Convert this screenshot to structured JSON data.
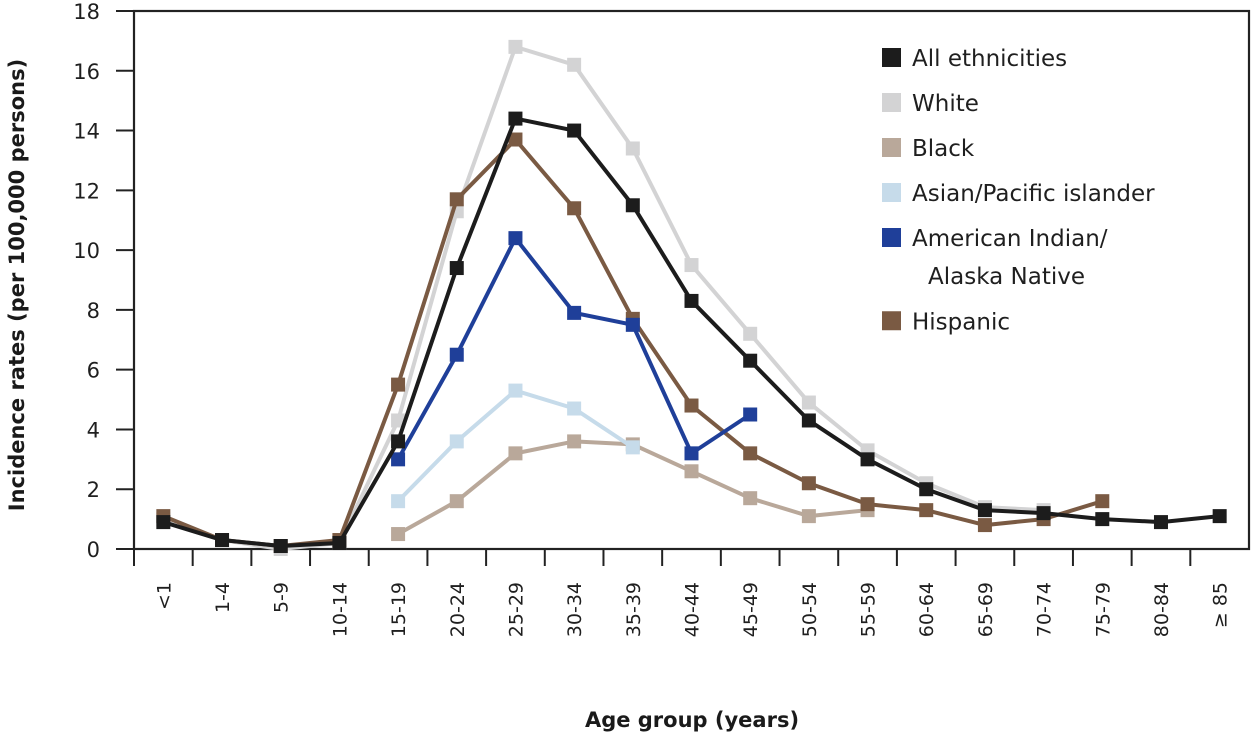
{
  "chart_data": {
    "type": "line",
    "title": "",
    "xlabel": "Age group (years)",
    "ylabel": "Incidence rates (per 100,000 persons)",
    "ylim": [
      0,
      18
    ],
    "yticks": [
      0,
      2,
      4,
      6,
      8,
      10,
      12,
      14,
      16,
      18
    ],
    "grid": false,
    "legend_position": "top-right",
    "categories": [
      "<1",
      "1-4",
      "5-9",
      "10-14",
      "15-19",
      "20-24",
      "25-29",
      "30-34",
      "35-39",
      "40-44",
      "45-49",
      "50-54",
      "55-59",
      "60-64",
      "65-69",
      "70-74",
      "75-79",
      "80-84",
      "≥ 85"
    ],
    "series": [
      {
        "name": "White",
        "legend": [
          "White"
        ],
        "color": "#d3d3d4",
        "values": [
          1.0,
          0.3,
          0.0,
          0.2,
          4.3,
          11.3,
          16.8,
          16.2,
          13.4,
          9.5,
          7.2,
          4.9,
          3.3,
          2.2,
          1.4,
          1.3,
          null,
          null,
          null
        ]
      },
      {
        "name": "Black",
        "legend": [
          "Black"
        ],
        "color": "#b9a89a",
        "values": [
          null,
          null,
          null,
          null,
          0.5,
          1.6,
          3.2,
          3.6,
          3.5,
          2.6,
          1.7,
          1.1,
          1.3,
          null,
          null,
          null,
          null,
          null,
          null
        ]
      },
      {
        "name": "Asian/Pacific islander",
        "legend": [
          "Asian/Pacific islander"
        ],
        "color": "#c6dbea",
        "values": [
          null,
          null,
          null,
          null,
          1.6,
          3.6,
          5.3,
          4.7,
          3.4,
          null,
          null,
          null,
          null,
          null,
          null,
          null,
          null,
          null,
          null
        ]
      },
      {
        "name": "Hispanic",
        "legend": [
          "Hispanic"
        ],
        "color": "#7a5a43",
        "values": [
          1.1,
          0.3,
          0.1,
          0.3,
          5.5,
          11.7,
          13.7,
          11.4,
          7.7,
          4.8,
          3.2,
          2.2,
          1.5,
          1.3,
          0.8,
          1.0,
          1.6,
          null,
          null
        ]
      },
      {
        "name": "American Indian/Alaska Native",
        "legend": [
          "American Indian/",
          "Alaska Native"
        ],
        "color": "#1f3f99",
        "values": [
          null,
          null,
          null,
          null,
          3.0,
          6.5,
          10.4,
          7.9,
          7.5,
          3.2,
          4.5,
          null,
          null,
          null,
          null,
          null,
          null,
          null,
          null
        ]
      },
      {
        "name": "All ethnicities",
        "legend": [
          "All ethnicities"
        ],
        "color": "#1c1c1c",
        "values": [
          0.9,
          0.3,
          0.1,
          0.2,
          3.6,
          9.4,
          14.4,
          14.0,
          11.5,
          8.3,
          6.3,
          4.3,
          3.0,
          2.0,
          1.3,
          1.2,
          1.0,
          0.9,
          1.1
        ]
      }
    ],
    "legend_order": [
      "All ethnicities",
      "White",
      "Black",
      "Asian/Pacific islander",
      "American Indian/Alaska Native",
      "Hispanic"
    ]
  }
}
